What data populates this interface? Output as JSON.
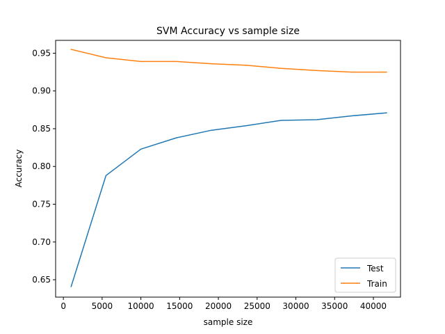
{
  "chart_data": {
    "type": "line",
    "title": "SVM Accuracy vs sample size",
    "xlabel": "sample size",
    "ylabel": "Accuracy",
    "xlim": [
      -1000,
      43500
    ],
    "ylim": [
      0.627,
      0.967
    ],
    "xticks": [
      0,
      5000,
      10000,
      15000,
      20000,
      25000,
      30000,
      35000,
      40000
    ],
    "yticks": [
      0.65,
      0.7,
      0.75,
      0.8,
      0.85,
      0.9,
      0.95
    ],
    "ytick_labels": [
      "0.65",
      "0.70",
      "0.75",
      "0.80",
      "0.85",
      "0.90",
      "0.95"
    ],
    "grid": false,
    "legend_position": "bottom-right",
    "x": [
      1000,
      5500,
      10000,
      14600,
      19100,
      23600,
      28100,
      32700,
      37200,
      41700
    ],
    "series": [
      {
        "name": "Test",
        "color": "#1f77b4",
        "values": [
          0.641,
          0.788,
          0.823,
          0.838,
          0.848,
          0.854,
          0.861,
          0.862,
          0.867,
          0.871
        ]
      },
      {
        "name": "Train",
        "color": "#ff7f0e",
        "values": [
          0.955,
          0.944,
          0.939,
          0.939,
          0.936,
          0.934,
          0.93,
          0.927,
          0.925,
          0.925
        ]
      }
    ]
  }
}
